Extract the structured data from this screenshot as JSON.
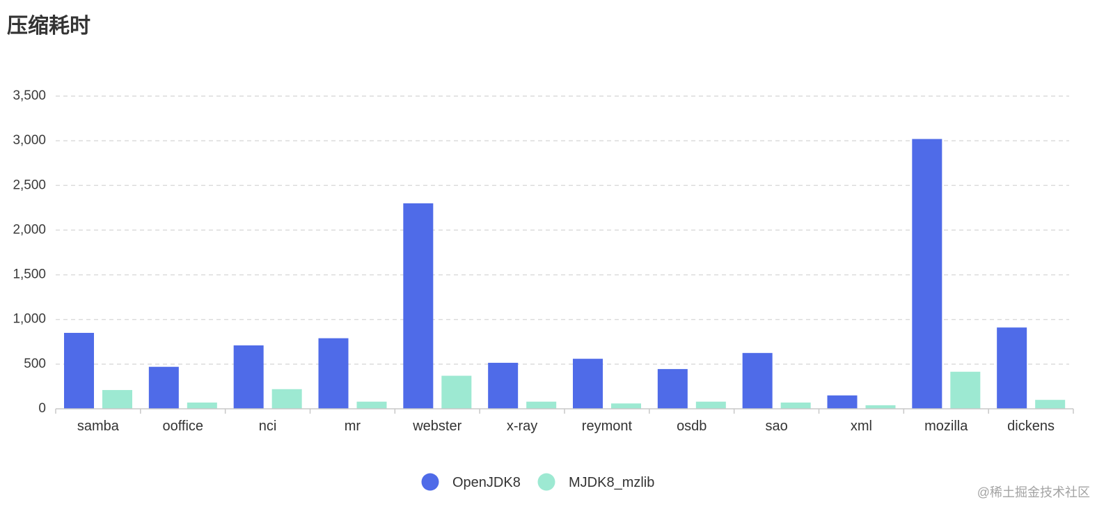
{
  "chart_data": {
    "type": "bar",
    "title": "压缩耗时",
    "categories": [
      "samba",
      "ooffice",
      "nci",
      "mr",
      "webster",
      "x-ray",
      "reymont",
      "osdb",
      "sao",
      "xml",
      "mozilla",
      "dickens"
    ],
    "series": [
      {
        "name": "OpenJDK8",
        "color": "#4F6BE8",
        "values": [
          850,
          470,
          710,
          790,
          2300,
          515,
          560,
          445,
          625,
          150,
          3020,
          910
        ]
      },
      {
        "name": "MJDK8_mzlib",
        "color": "#9DE9D2",
        "values": [
          210,
          70,
          220,
          80,
          370,
          80,
          60,
          80,
          70,
          40,
          415,
          100
        ]
      }
    ],
    "ylim": [
      0,
      3500
    ],
    "yticks": [
      0,
      500,
      1000,
      1500,
      2000,
      2500,
      3000,
      3500
    ],
    "ytick_labels": [
      "0",
      "500",
      "1,000",
      "1,500",
      "2,000",
      "2,500",
      "3,000",
      "3,500"
    ],
    "grid": true,
    "legend_position": "bottom-center"
  },
  "watermark": "@稀土掘金技术社区"
}
